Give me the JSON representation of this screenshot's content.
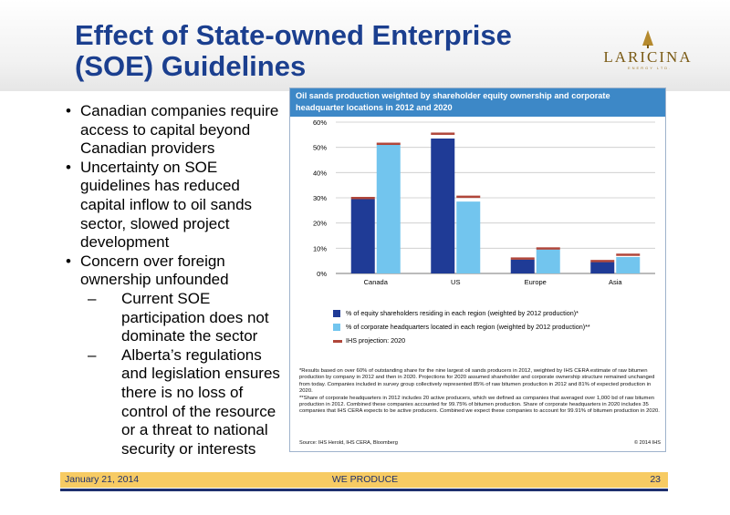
{
  "slide": {
    "title": "Effect of State-owned Enterprise (SOE) Guidelines",
    "logo_text": "LARICINA",
    "logo_sub": "ENERGY LTD.",
    "bullets": [
      {
        "level": 1,
        "text": "Canadian companies require access to capital beyond Canadian providers"
      },
      {
        "level": 1,
        "text": "Uncertainty on SOE guidelines has reduced capital inflow to oil sands sector, slowed project development"
      },
      {
        "level": 1,
        "text": "Concern over foreign ownership unfounded"
      },
      {
        "level": 2,
        "text": "Current SOE participation does not dominate the sector"
      },
      {
        "level": 2,
        "text": "Alberta’s regulations and legislation ensures there is no loss of control of the resource or a threat to national security or interests"
      }
    ],
    "footer": {
      "date": "January 21, 2014",
      "center": "WE PRODUCE",
      "page": "23"
    }
  },
  "panel": {
    "notes": [
      "*Results based on over 60% of outstanding share for the nine largest oil sands producers in 2012, weighted by IHS CERA estimate of raw bitumen production by company in 2012 and then in 2020. Projections for 2020 assumed shareholder and corporate ownership structure remained unchanged from today. Companies included in survey group collectively represented 85% of raw bitumen production in 2012 and 81% of expected production in 2020.",
      "**Share of corporate headquarters in 2012 includes 20 active producers, which we defined as companies that averaged over 1,000 bd of raw bitumen production in 2012. Combined these companies accounted for 99.75% of bitumen production. Share of corporate headquarters in 2020 includes 35 companies that IHS CERA expects to be active producers. Combined we expect these companies to account for 99.91% of bitumen production in 2020."
    ],
    "source": "Source: IHS Herold, IHS CERA, Bloomberg",
    "copyright": "© 2014 IHS"
  },
  "chart_data": {
    "type": "bar",
    "title": "Oil sands production weighted by shareholder equity ownership and corporate headquarter locations in 2012 and 2020",
    "categories": [
      "Canada",
      "US",
      "Europe",
      "Asia"
    ],
    "series": [
      {
        "name": "% of equity shareholders residing in each region (weighted by 2012 production)*",
        "values": [
          29.5,
          53.5,
          5.5,
          4.5
        ],
        "color": "#1f3b96"
      },
      {
        "name": "% of corporate headquarters located in each region (weighted by 2012 production)**",
        "values": [
          51,
          28.5,
          9.5,
          6.5
        ],
        "color": "#72c5ee"
      }
    ],
    "projection": {
      "name": "IHS projection: 2020",
      "values": [
        [
          30,
          51.5
        ],
        [
          55.5,
          30.5
        ],
        [
          6,
          10
        ],
        [
          5,
          7.5
        ]
      ],
      "color": "#b0463a"
    },
    "ylim": [
      0,
      60
    ],
    "yticks": [
      "0%",
      "10%",
      "20%",
      "30%",
      "40%",
      "50%",
      "60%"
    ],
    "grid": true,
    "legend": "bottom"
  }
}
